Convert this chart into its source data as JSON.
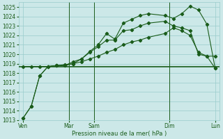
{
  "bg_color": "#cce8e8",
  "grid_color": "#99cccc",
  "line_color": "#1a5c1a",
  "xlabel": "Pression niveau de la mer( hPa )",
  "ylim": [
    1013,
    1025.5
  ],
  "yticks": [
    1013,
    1014,
    1015,
    1016,
    1017,
    1018,
    1019,
    1020,
    1021,
    1022,
    1023,
    1024,
    1025
  ],
  "xlim": [
    0,
    24
  ],
  "xtick_positions": [
    0.5,
    6,
    9,
    18,
    23.5
  ],
  "xtick_labels": [
    "Ven",
    "Mar",
    "Sam",
    "Dim",
    "Lun"
  ],
  "vline_positions": [
    6,
    9,
    18
  ],
  "series1_x": [
    0.5,
    1.5,
    2.5,
    3.5,
    4.5,
    5.5,
    6.5,
    7.5,
    8.5,
    9.5,
    10.5,
    11.5,
    12.5,
    13.5,
    14.5,
    15.5,
    17.5,
    18.5,
    19.5,
    20.5,
    21.5,
    22.5,
    23.5
  ],
  "series1_y": [
    1013.2,
    1014.5,
    1017.7,
    1018.7,
    1018.8,
    1018.9,
    1019.0,
    1019.5,
    1020.3,
    1021.0,
    1022.2,
    1021.6,
    1023.3,
    1023.7,
    1024.1,
    1024.3,
    1024.1,
    1023.8,
    1024.3,
    1025.1,
    1024.7,
    1023.2,
    1018.5
  ],
  "series2_x": [
    0.5,
    1.5,
    2.5,
    3.5,
    4.5,
    5.5,
    6.5,
    7.5,
    8.5,
    9.5,
    10.5,
    11.5,
    12.5,
    13.5,
    14.5,
    15.5,
    17.5,
    18.5,
    19.5,
    20.5,
    21.5,
    22.5,
    23.5
  ],
  "series2_y": [
    1013.2,
    1014.5,
    1017.7,
    1018.7,
    1018.8,
    1018.8,
    1019.2,
    1019.5,
    1020.2,
    1020.8,
    1021.5,
    1021.5,
    1022.5,
    1022.6,
    1023.0,
    1023.3,
    1023.5,
    1023.0,
    1022.8,
    1022.5,
    1020.0,
    1019.8,
    1018.5
  ],
  "series3_x": [
    0.5,
    1.5,
    2.5,
    3.5,
    4.5,
    5.5,
    6.5,
    7.5,
    8.5,
    9.5,
    10.5,
    11.5,
    12.5,
    13.5,
    14.5,
    15.5,
    17.5,
    18.5,
    19.5,
    20.5,
    21.5,
    22.5,
    23.5
  ],
  "series3_y": [
    1018.7,
    1018.7,
    1018.7,
    1018.7,
    1018.8,
    1018.8,
    1019.0,
    1019.2,
    1019.5,
    1019.8,
    1020.2,
    1020.5,
    1021.0,
    1021.3,
    1021.5,
    1021.8,
    1022.2,
    1022.8,
    1022.5,
    1022.0,
    1020.2,
    1019.8,
    1019.8
  ],
  "hline_y": 1018.7,
  "figsize": [
    3.2,
    2.0
  ],
  "dpi": 100
}
